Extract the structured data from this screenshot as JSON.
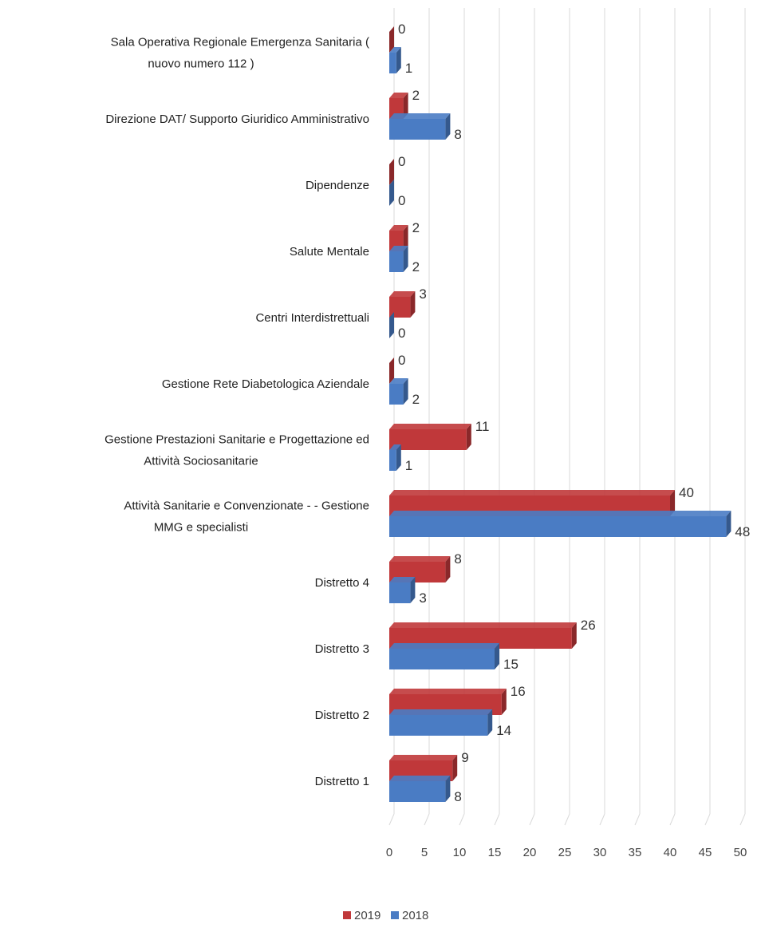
{
  "chart_data": {
    "type": "bar",
    "orientation": "horizontal",
    "style": "3d",
    "categories": [
      [
        "Sala Operativa Regionale Emergenza Sanitaria (",
        "nuovo numero 112 )"
      ],
      [
        "Direzione DAT/ Supporto Giuridico Amministrativo"
      ],
      [
        "Dipendenze"
      ],
      [
        "Salute Mentale"
      ],
      [
        "Centri Interdistrettuali"
      ],
      [
        "Gestione Rete Diabetologica Aziendale"
      ],
      [
        "Gestione Prestazioni Sanitarie e Progettazione ed",
        "Attività Sociosanitarie"
      ],
      [
        "Attività Sanitarie e Convenzionate -   - Gestione",
        "MMG e specialisti"
      ],
      [
        "Distretto 4"
      ],
      [
        "Distretto 3"
      ],
      [
        "Distretto 2"
      ],
      [
        "Distretto 1"
      ]
    ],
    "series": [
      {
        "name": "2019",
        "color": "#c0383a",
        "values": [
          0,
          2,
          0,
          2,
          3,
          0,
          11,
          40,
          8,
          26,
          16,
          9
        ]
      },
      {
        "name": "2018",
        "color": "#4a7cc4",
        "values": [
          1,
          8,
          0,
          2,
          0,
          2,
          1,
          48,
          3,
          15,
          14,
          8
        ]
      }
    ],
    "xlim": [
      0,
      50
    ],
    "ticks": [
      0,
      5,
      10,
      15,
      20,
      25,
      30,
      35,
      40,
      45,
      50
    ],
    "grid": true,
    "legend": "bottom",
    "title": "",
    "xlabel": "",
    "ylabel": ""
  }
}
